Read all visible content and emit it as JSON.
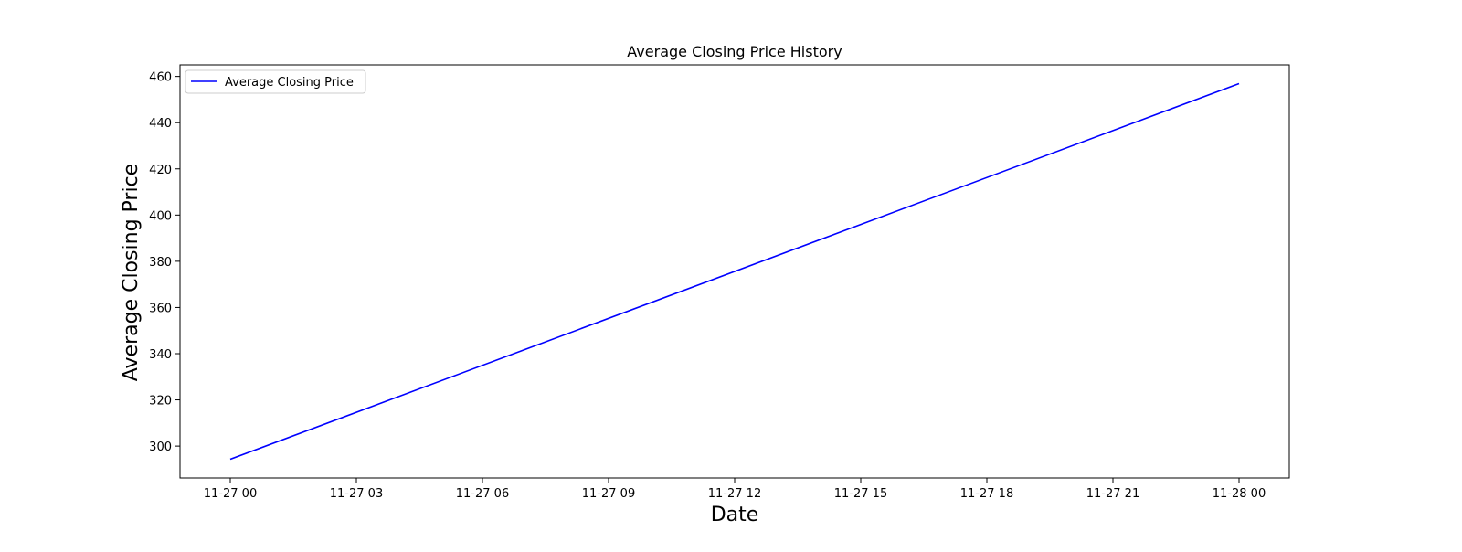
{
  "chart_data": {
    "type": "line",
    "title": "Average Closing Price History",
    "xlabel": "Date",
    "ylabel": "Average Closing Price",
    "x": [
      "2023-11-27 00:00",
      "2023-11-28 00:00"
    ],
    "series": [
      {
        "name": "Average Closing Price",
        "color": "#0000ff",
        "values": [
          294.3,
          456.9
        ]
      }
    ],
    "x_ticks": [
      "11-27 00",
      "11-27 03",
      "11-27 06",
      "11-27 09",
      "11-27 12",
      "11-27 15",
      "11-27 18",
      "11-27 21",
      "11-28 00"
    ],
    "y_ticks": [
      300,
      320,
      340,
      360,
      380,
      400,
      420,
      440,
      460
    ],
    "ylim": [
      286.2,
      465.0
    ],
    "grid": false,
    "legend_position": "top-left"
  }
}
